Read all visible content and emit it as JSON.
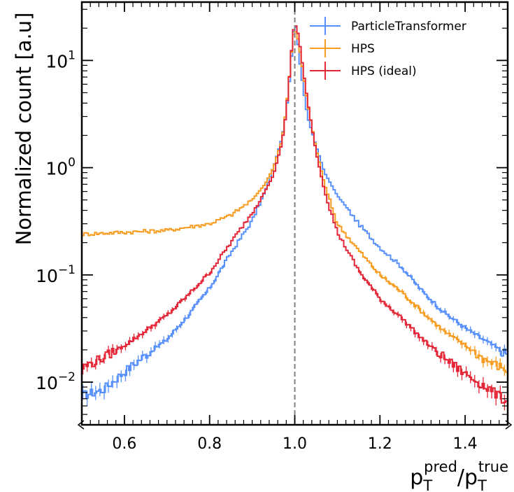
{
  "chart_data": {
    "type": "line",
    "drawstyle": "steps",
    "ylabel": "Normalized count [a.u]",
    "xlabel": {
      "base": "p",
      "sub": "T",
      "sup": "pred",
      "separator": "/",
      "base2": "p",
      "sub2": "T",
      "sup2": "true"
    },
    "xlim": [
      0.5,
      1.5
    ],
    "ylim": [
      0.004,
      35
    ],
    "yscale": "log",
    "x_ticks": [
      0.6,
      0.8,
      1.0,
      1.2,
      1.4
    ],
    "x_tick_labels": [
      "0.6",
      "0.8",
      "1.0",
      "1.2",
      "1.4"
    ],
    "y_ticks": [
      0.01,
      0.1,
      1,
      10
    ],
    "y_tick_labels": [
      {
        "base": "10",
        "exp": "−2"
      },
      {
        "base": "10",
        "exp": "−1"
      },
      {
        "base": "10",
        "exp": "0"
      },
      {
        "base": "10",
        "exp": "1"
      }
    ],
    "reference_line": {
      "x": 1.0,
      "style": "dashed",
      "color": "#808080"
    },
    "legend_position": "top-right",
    "series": [
      {
        "name": "ParticleTransformer",
        "color": "#5790fc",
        "points": [
          [
            0.5,
            0.0075
          ],
          [
            0.55,
            0.0085
          ],
          [
            0.6,
            0.0125
          ],
          [
            0.65,
            0.018
          ],
          [
            0.7,
            0.025
          ],
          [
            0.75,
            0.042
          ],
          [
            0.8,
            0.075
          ],
          [
            0.85,
            0.16
          ],
          [
            0.9,
            0.32
          ],
          [
            0.93,
            0.6
          ],
          [
            0.95,
            1.0
          ],
          [
            0.97,
            1.9
          ],
          [
            0.98,
            3.2
          ],
          [
            0.99,
            8.0
          ],
          [
            0.995,
            15
          ],
          [
            1.0,
            23
          ],
          [
            1.005,
            18
          ],
          [
            1.01,
            11
          ],
          [
            1.02,
            5.5
          ],
          [
            1.03,
            3.0
          ],
          [
            1.05,
            1.6
          ],
          [
            1.07,
            0.9
          ],
          [
            1.1,
            0.55
          ],
          [
            1.15,
            0.3
          ],
          [
            1.2,
            0.18
          ],
          [
            1.25,
            0.12
          ],
          [
            1.3,
            0.07
          ],
          [
            1.35,
            0.045
          ],
          [
            1.4,
            0.032
          ],
          [
            1.45,
            0.024
          ],
          [
            1.5,
            0.018
          ]
        ]
      },
      {
        "name": "HPS",
        "color": "#f89c20",
        "points": [
          [
            0.5,
            0.24
          ],
          [
            0.6,
            0.25
          ],
          [
            0.7,
            0.26
          ],
          [
            0.8,
            0.3
          ],
          [
            0.85,
            0.36
          ],
          [
            0.9,
            0.5
          ],
          [
            0.93,
            0.7
          ],
          [
            0.95,
            1.0
          ],
          [
            0.97,
            1.8
          ],
          [
            0.98,
            3.5
          ],
          [
            0.99,
            9.0
          ],
          [
            0.995,
            16
          ],
          [
            1.0,
            19
          ],
          [
            1.005,
            18
          ],
          [
            1.01,
            14
          ],
          [
            1.02,
            7.5
          ],
          [
            1.03,
            4.0
          ],
          [
            1.05,
            1.5
          ],
          [
            1.07,
            0.7
          ],
          [
            1.1,
            0.3
          ],
          [
            1.15,
            0.17
          ],
          [
            1.2,
            0.1
          ],
          [
            1.25,
            0.07
          ],
          [
            1.3,
            0.045
          ],
          [
            1.35,
            0.03
          ],
          [
            1.4,
            0.022
          ],
          [
            1.45,
            0.016
          ],
          [
            1.5,
            0.013
          ]
        ]
      },
      {
        "name": "HPS (ideal)",
        "color": "#e42536",
        "points": [
          [
            0.5,
            0.0135
          ],
          [
            0.55,
            0.017
          ],
          [
            0.6,
            0.022
          ],
          [
            0.65,
            0.03
          ],
          [
            0.7,
            0.042
          ],
          [
            0.75,
            0.065
          ],
          [
            0.8,
            0.105
          ],
          [
            0.85,
            0.2
          ],
          [
            0.9,
            0.38
          ],
          [
            0.93,
            0.6
          ],
          [
            0.95,
            0.85
          ],
          [
            0.97,
            1.7
          ],
          [
            0.98,
            3.3
          ],
          [
            0.99,
            9.0
          ],
          [
            0.995,
            17
          ],
          [
            1.0,
            22
          ],
          [
            1.005,
            20
          ],
          [
            1.01,
            16
          ],
          [
            1.02,
            8.0
          ],
          [
            1.03,
            4.2
          ],
          [
            1.05,
            1.4
          ],
          [
            1.07,
            0.6
          ],
          [
            1.1,
            0.25
          ],
          [
            1.15,
            0.11
          ],
          [
            1.2,
            0.06
          ],
          [
            1.25,
            0.04
          ],
          [
            1.3,
            0.025
          ],
          [
            1.35,
            0.017
          ],
          [
            1.4,
            0.012
          ],
          [
            1.45,
            0.009
          ],
          [
            1.5,
            0.0065
          ]
        ]
      }
    ]
  }
}
